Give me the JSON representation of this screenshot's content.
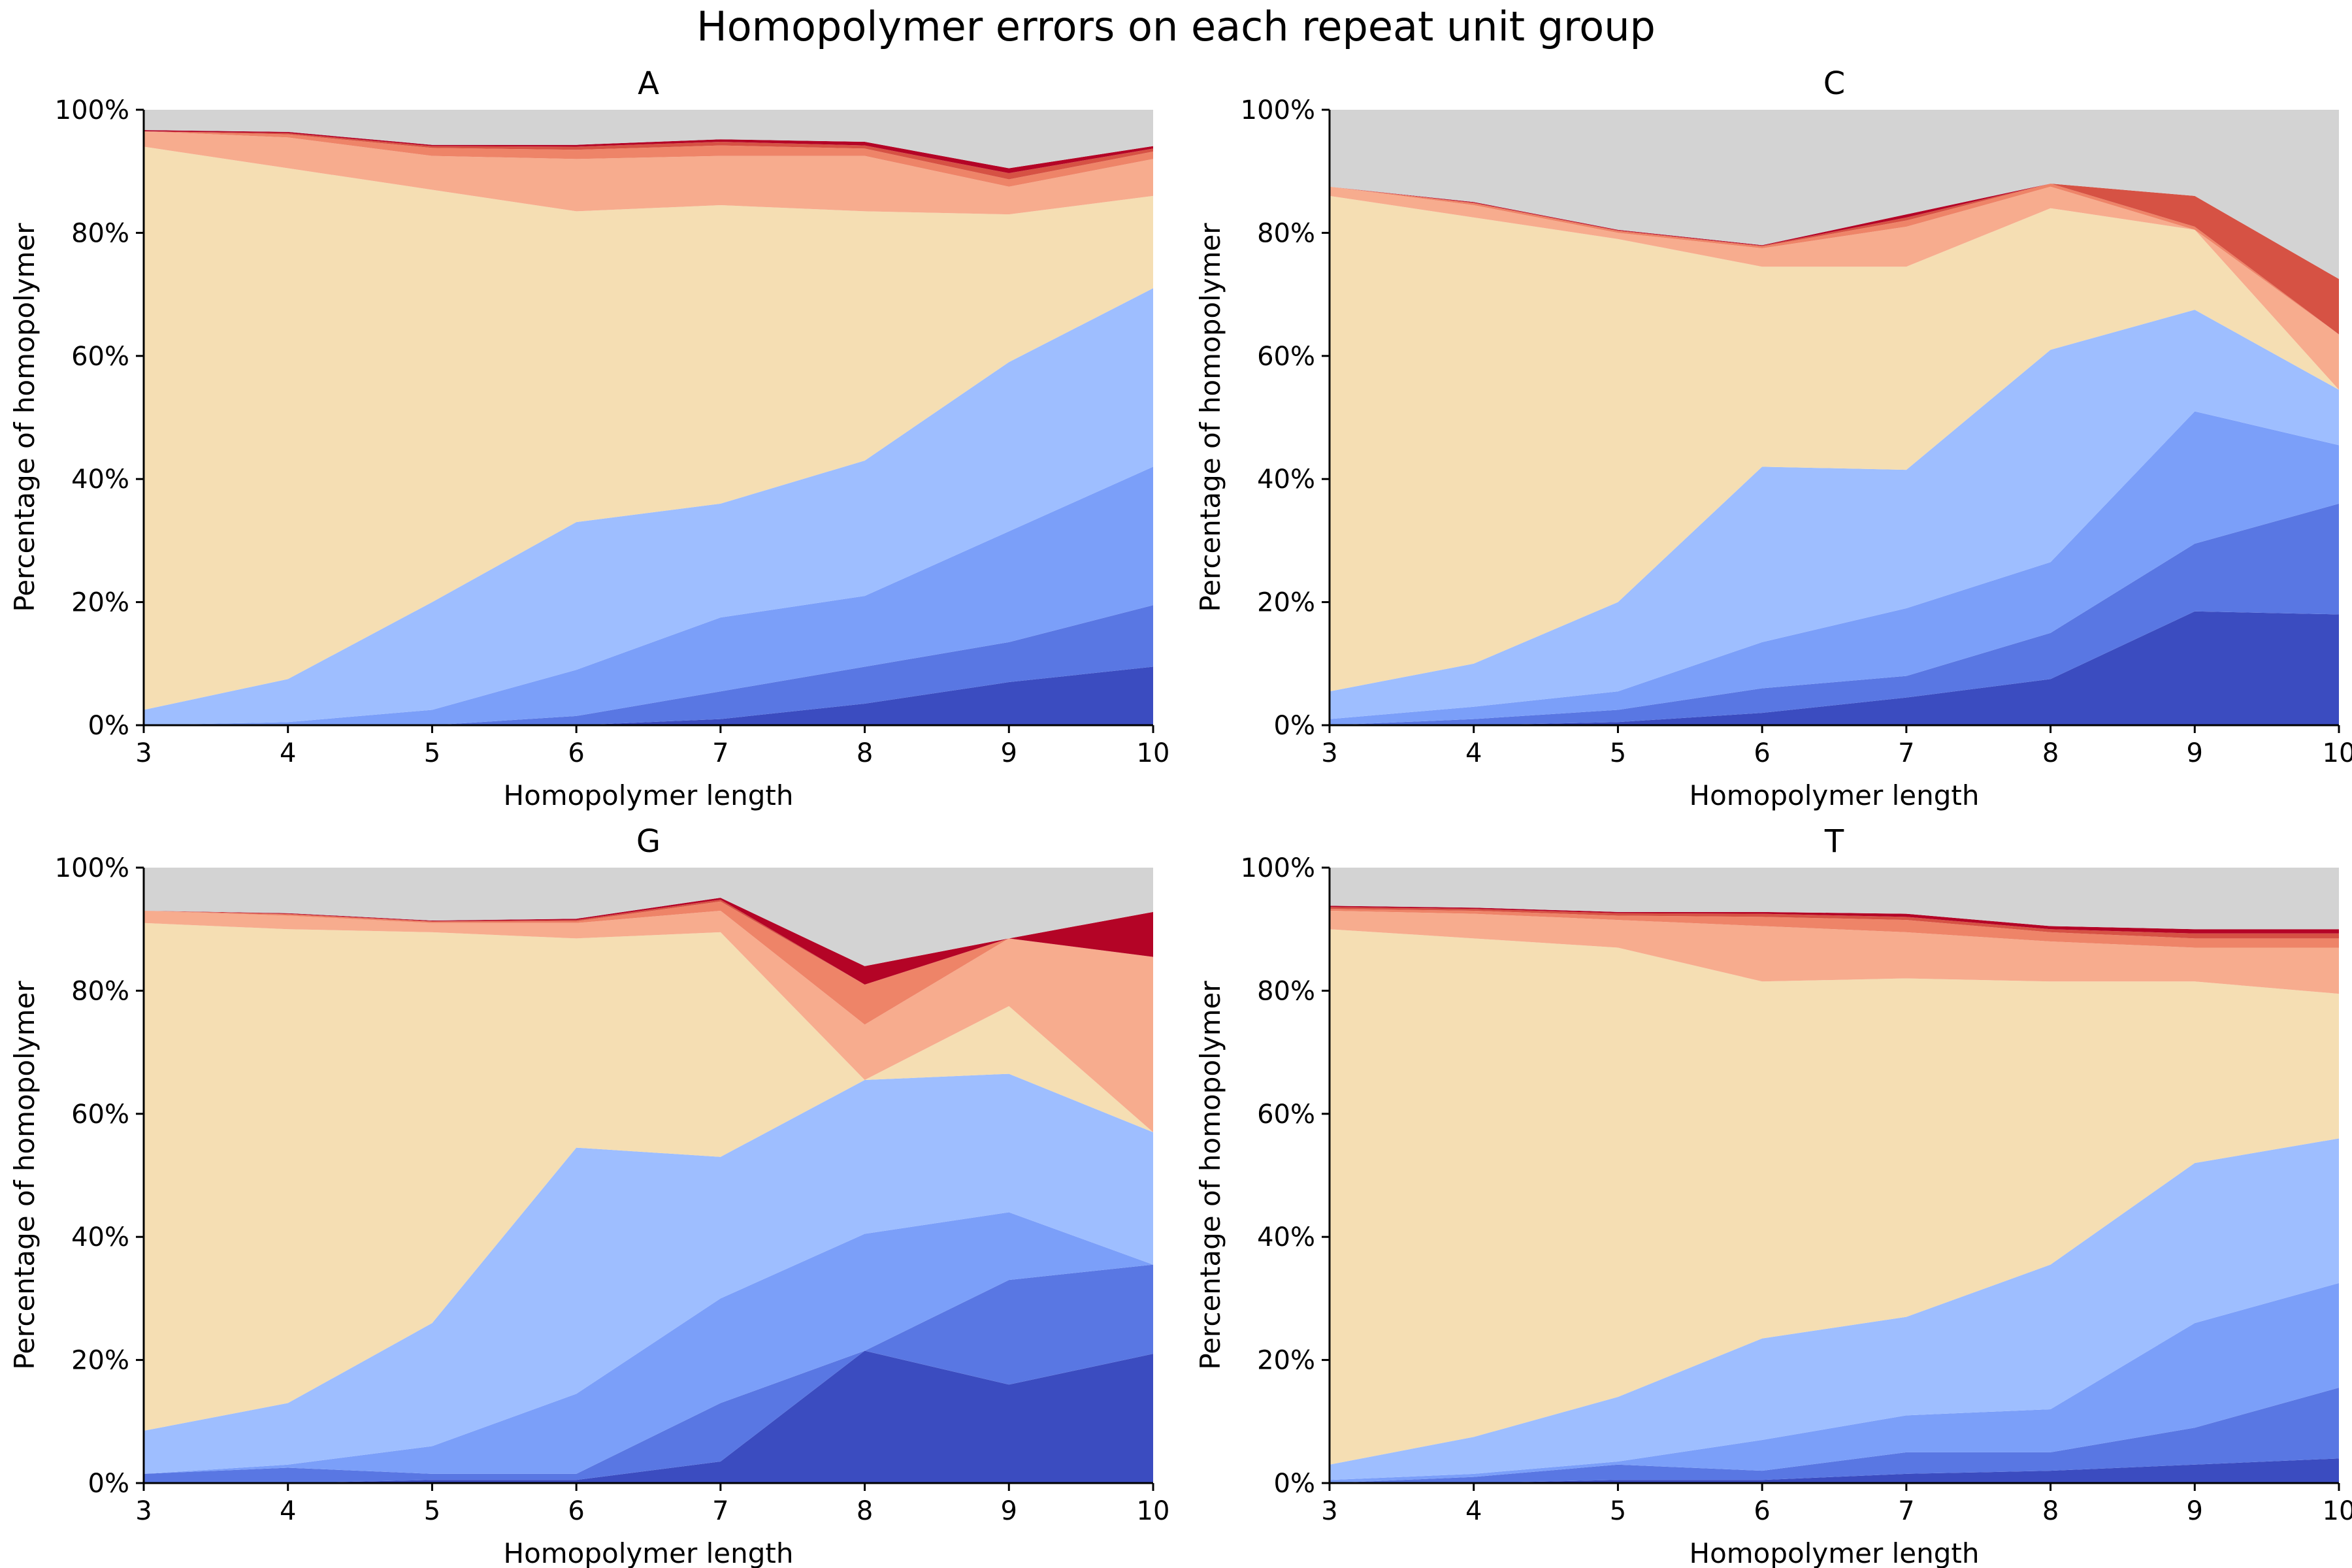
{
  "figure": {
    "title": "Homopolymer errors on each repeat unit group"
  },
  "colors": [
    "#3b4cc0",
    "#5977e3",
    "#7b9ff9",
    "#9ebeff",
    "#f5deb3",
    "#f7ac8e",
    "#ee8468",
    "#d65244",
    "#b40426",
    "#d3d3d3"
  ],
  "chart_data": [
    {
      "type": "area",
      "stacked": true,
      "title": "A",
      "xlabel": "Homopolymer length",
      "ylabel": "Percentage of homopolymer",
      "x": [
        3,
        4,
        5,
        6,
        7,
        8,
        9,
        10
      ],
      "xticks": [
        "3",
        "4",
        "5",
        "6",
        "7",
        "8",
        "9",
        "10"
      ],
      "ylim": [
        0,
        100
      ],
      "yticks": [
        "0%",
        "20%",
        "40%",
        "60%",
        "80%",
        "100%"
      ],
      "series": [
        {
          "values": [
            0,
            0,
            0,
            0,
            1,
            3.5,
            7,
            9.5
          ]
        },
        {
          "values": [
            0,
            0,
            0,
            1.5,
            4.5,
            6,
            6.5,
            10
          ]
        },
        {
          "values": [
            0,
            0.5,
            2.5,
            7.5,
            12,
            11.5,
            18,
            22.5
          ]
        },
        {
          "values": [
            2.5,
            7,
            17.5,
            24,
            18.5,
            22,
            27.5,
            29
          ]
        },
        {
          "values": [
            91.5,
            83,
            67,
            50.5,
            48.5,
            40.5,
            24,
            15
          ]
        },
        {
          "values": [
            2.5,
            5,
            5.5,
            8.5,
            8,
            9,
            4.5,
            6
          ]
        },
        {
          "values": [
            0,
            0.5,
            1.3,
            1.5,
            1.7,
            1.2,
            1.2,
            1.2
          ]
        },
        {
          "values": [
            0,
            0.2,
            0.3,
            0.5,
            0.6,
            0.5,
            1,
            0.5
          ]
        },
        {
          "values": [
            0.2,
            0.2,
            0.2,
            0.3,
            0.4,
            0.6,
            0.8,
            0.4
          ]
        },
        {
          "values": [
            3.3,
            3.6,
            5.7,
            5.7,
            5.3,
            5.7,
            9.5,
            6.4
          ]
        }
      ]
    },
    {
      "type": "area",
      "stacked": true,
      "title": "C",
      "xlabel": "Homopolymer length",
      "ylabel": "Percentage of homopolymer",
      "x": [
        3,
        4,
        5,
        6,
        7,
        8,
        9,
        10
      ],
      "xticks": [
        "3",
        "4",
        "5",
        "6",
        "7",
        "8",
        "9",
        "10"
      ],
      "ylim": [
        0,
        100
      ],
      "yticks": [
        "0%",
        "20%",
        "40%",
        "60%",
        "80%",
        "100%"
      ],
      "series": [
        {
          "values": [
            0,
            0,
            0.5,
            2,
            4.5,
            7.5,
            18.5,
            18
          ]
        },
        {
          "values": [
            0,
            1,
            2,
            4,
            3.5,
            7.5,
            11,
            18
          ]
        },
        {
          "values": [
            1,
            2,
            3,
            7.5,
            11,
            11.5,
            21.5,
            9.5
          ]
        },
        {
          "values": [
            4.5,
            7,
            14.5,
            28.5,
            22.5,
            34.5,
            16.5,
            9
          ]
        },
        {
          "values": [
            80.5,
            72.5,
            59,
            32.5,
            33,
            23,
            13,
            0
          ]
        },
        {
          "values": [
            1.5,
            2,
            1,
            3,
            6.5,
            3.5,
            0,
            9
          ]
        },
        {
          "values": [
            0,
            0.3,
            0.3,
            0.3,
            1,
            0.5,
            0.5,
            0
          ]
        },
        {
          "values": [
            0,
            0.1,
            0.1,
            0.1,
            0.5,
            0,
            5,
            9
          ]
        },
        {
          "values": [
            0,
            0.1,
            0.1,
            0.1,
            0.5,
            0,
            0,
            0
          ]
        },
        {
          "values": [
            12.5,
            15,
            19.5,
            22,
            17,
            12,
            14,
            27.5
          ]
        }
      ]
    },
    {
      "type": "area",
      "stacked": true,
      "title": "G",
      "xlabel": "Homopolymer length",
      "ylabel": "Percentage of homopolymer",
      "x": [
        3,
        4,
        5,
        6,
        7,
        8,
        9,
        10
      ],
      "xticks": [
        "3",
        "4",
        "5",
        "6",
        "7",
        "8",
        "9",
        "10"
      ],
      "ylim": [
        0,
        100
      ],
      "yticks": [
        "0%",
        "20%",
        "40%",
        "60%",
        "80%",
        "100%"
      ],
      "series": [
        {
          "values": [
            0,
            0,
            0.5,
            0.5,
            3.5,
            21.5,
            16,
            21
          ]
        },
        {
          "values": [
            1.5,
            2.5,
            1,
            1,
            9.5,
            0,
            17,
            14.5
          ]
        },
        {
          "values": [
            0,
            0.5,
            4.5,
            13,
            17,
            19,
            11,
            0
          ]
        },
        {
          "values": [
            7,
            10,
            20,
            40,
            23,
            25,
            22.5,
            21.5
          ]
        },
        {
          "values": [
            82.5,
            77,
            63.5,
            34,
            36.5,
            0,
            11,
            0
          ]
        },
        {
          "values": [
            2,
            2.2,
            1.5,
            2.5,
            3.5,
            9,
            11,
            28.5
          ]
        },
        {
          "values": [
            0,
            0.2,
            0.2,
            0.3,
            1.5,
            6.5,
            0,
            0
          ]
        },
        {
          "values": [
            0,
            0.1,
            0.1,
            0.2,
            0.3,
            0,
            0,
            0
          ]
        },
        {
          "values": [
            0,
            0.1,
            0.1,
            0.2,
            0.3,
            3,
            0,
            7.3
          ]
        },
        {
          "values": [
            7,
            7.4,
            8.6,
            8.3,
            5,
            16,
            11.5,
            7.2
          ]
        }
      ]
    },
    {
      "type": "area",
      "stacked": true,
      "title": "T",
      "xlabel": "Homopolymer length",
      "ylabel": "Percentage of homopolymer",
      "x": [
        3,
        4,
        5,
        6,
        7,
        8,
        9,
        10
      ],
      "xticks": [
        "3",
        "4",
        "5",
        "6",
        "7",
        "8",
        "9",
        "10"
      ],
      "ylim": [
        0,
        100
      ],
      "yticks": [
        "0%",
        "20%",
        "40%",
        "60%",
        "80%",
        "100%"
      ],
      "series": [
        {
          "values": [
            0,
            0,
            0.5,
            0.5,
            1.5,
            2,
            3,
            4
          ]
        },
        {
          "values": [
            0,
            1,
            2.5,
            1.5,
            3.5,
            3,
            6,
            11.5
          ]
        },
        {
          "values": [
            0.5,
            0.5,
            0.5,
            5,
            6,
            7,
            17,
            17
          ]
        },
        {
          "values": [
            2.5,
            6,
            10.5,
            16.5,
            16,
            23.5,
            26,
            23.5
          ]
        },
        {
          "values": [
            87,
            81,
            73,
            58,
            55,
            46,
            29.5,
            23.5
          ]
        },
        {
          "values": [
            3,
            4,
            4.5,
            9,
            7.5,
            6.5,
            5.5,
            7.5
          ]
        },
        {
          "values": [
            0.3,
            0.5,
            0.7,
            1.5,
            2,
            1.5,
            1.5,
            1.5
          ]
        },
        {
          "values": [
            0.3,
            0.3,
            0.4,
            0.5,
            0.5,
            0.5,
            0.8,
            0.8
          ]
        },
        {
          "values": [
            0.2,
            0.2,
            0.2,
            0.3,
            0.5,
            0.5,
            0.7,
            0.7
          ]
        },
        {
          "values": [
            6.2,
            6.5,
            7.2,
            7.2,
            7.5,
            9.5,
            10,
            10
          ]
        }
      ]
    }
  ]
}
